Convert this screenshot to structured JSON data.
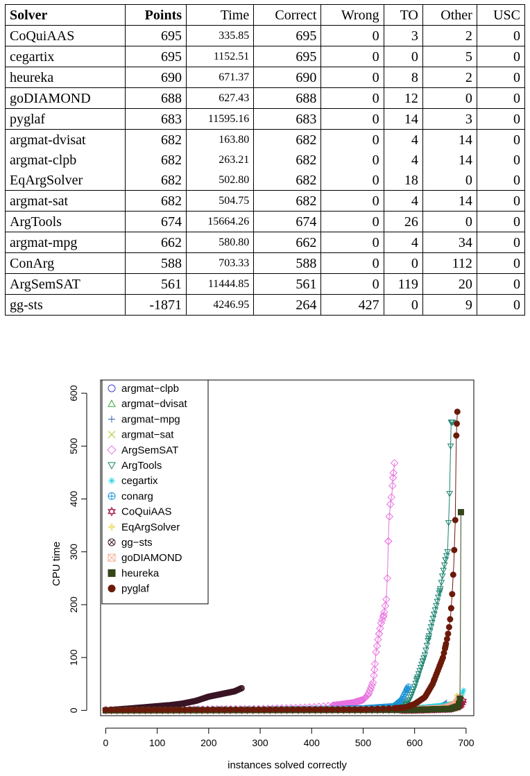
{
  "table": {
    "headers": [
      "Solver",
      "Points",
      "Time",
      "Correct",
      "Wrong",
      "TO",
      "Other",
      "USC"
    ],
    "rows": [
      [
        "CoQuiAAS",
        "695",
        "335.85",
        "695",
        "0",
        "3",
        "2",
        "0"
      ],
      [
        "cegartix",
        "695",
        "1152.51",
        "695",
        "0",
        "0",
        "5",
        "0"
      ],
      [
        "heureka",
        "690",
        "671.37",
        "690",
        "0",
        "8",
        "2",
        "0"
      ],
      [
        "goDIAMOND",
        "688",
        "627.43",
        "688",
        "0",
        "12",
        "0",
        "0"
      ],
      [
        "pyglaf",
        "683",
        "11595.16",
        "683",
        "0",
        "14",
        "3",
        "0"
      ],
      [
        "argmat-dvisat",
        "682",
        "163.80",
        "682",
        "0",
        "4",
        "14",
        "0"
      ],
      [
        "argmat-clpb",
        "682",
        "263.21",
        "682",
        "0",
        "4",
        "14",
        "0"
      ],
      [
        "EqArgSolver",
        "682",
        "502.80",
        "682",
        "0",
        "18",
        "0",
        "0"
      ],
      [
        "argmat-sat",
        "682",
        "504.75",
        "682",
        "0",
        "4",
        "14",
        "0"
      ],
      [
        "ArgTools",
        "674",
        "15664.26",
        "674",
        "0",
        "26",
        "0",
        "0"
      ],
      [
        "argmat-mpg",
        "662",
        "580.80",
        "662",
        "0",
        "4",
        "34",
        "0"
      ],
      [
        "ConArg",
        "588",
        "703.33",
        "588",
        "0",
        "0",
        "112",
        "0"
      ],
      [
        "ArgSemSAT",
        "561",
        "11444.85",
        "561",
        "0",
        "119",
        "20",
        "0"
      ],
      [
        "gg-sts",
        "-1871",
        "4246.95",
        "264",
        "427",
        "0",
        "9",
        "0"
      ]
    ]
  },
  "chart_data": {
    "type": "scatter",
    "title": "",
    "xlabel": "instances solved correctly",
    "ylabel": "CPU time",
    "xlim": [
      -10,
      715
    ],
    "ylim": [
      -10,
      625
    ],
    "xticks": [
      0,
      100,
      200,
      300,
      400,
      500,
      600,
      700
    ],
    "yticks": [
      0,
      100,
      200,
      300,
      400,
      500,
      600
    ],
    "legend_position": "top-left",
    "series": [
      {
        "name": "argmat−clpb",
        "symbol": "circle",
        "color": "#3f3fd4",
        "n": 682,
        "points": [
          [
            0,
            0
          ],
          [
            600,
            1.5
          ],
          [
            650,
            3
          ],
          [
            675,
            6
          ],
          [
            680,
            9
          ],
          [
            682,
            12
          ]
        ]
      },
      {
        "name": "argmat−dvisat",
        "symbol": "triangle-up",
        "color": "#3aa63a",
        "n": 682,
        "points": [
          [
            0,
            0
          ],
          [
            600,
            1
          ],
          [
            650,
            2
          ],
          [
            675,
            5
          ],
          [
            680,
            8
          ],
          [
            682,
            10
          ]
        ]
      },
      {
        "name": "argmat−mpg",
        "symbol": "plus",
        "color": "#2a5fb5",
        "n": 662,
        "points": [
          [
            0,
            0
          ],
          [
            550,
            2
          ],
          [
            620,
            5
          ],
          [
            650,
            8
          ],
          [
            658,
            12
          ],
          [
            662,
            15
          ]
        ]
      },
      {
        "name": "argmat−sat",
        "symbol": "x",
        "color": "#b5c233",
        "n": 682,
        "points": [
          [
            0,
            0
          ],
          [
            600,
            1.5
          ],
          [
            660,
            4
          ],
          [
            678,
            8
          ],
          [
            682,
            12
          ]
        ]
      },
      {
        "name": "ArgSemSAT",
        "symbol": "diamond",
        "color": "#e86fe0",
        "n": 561,
        "points": [
          [
            0,
            1
          ],
          [
            300,
            3
          ],
          [
            400,
            6
          ],
          [
            450,
            10
          ],
          [
            480,
            14
          ],
          [
            500,
            20
          ],
          [
            510,
            30
          ],
          [
            520,
            55
          ],
          [
            525,
            110
          ],
          [
            530,
            140
          ],
          [
            535,
            165
          ],
          [
            540,
            180
          ],
          [
            545,
            210
          ],
          [
            547,
            250
          ],
          [
            550,
            355
          ],
          [
            553,
            390
          ],
          [
            556,
            410
          ],
          [
            558,
            440
          ],
          [
            561,
            468
          ]
        ]
      },
      {
        "name": "ArgTools",
        "symbol": "triangle-down",
        "color": "#17806d",
        "n": 674,
        "points": [
          [
            0,
            0
          ],
          [
            500,
            1
          ],
          [
            560,
            3
          ],
          [
            580,
            8
          ],
          [
            590,
            20
          ],
          [
            600,
            45
          ],
          [
            610,
            75
          ],
          [
            620,
            105
          ],
          [
            630,
            150
          ],
          [
            640,
            190
          ],
          [
            650,
            230
          ],
          [
            655,
            260
          ],
          [
            660,
            285
          ],
          [
            664,
            300
          ],
          [
            668,
            410
          ],
          [
            671,
            545
          ],
          [
            674,
            545
          ]
        ]
      },
      {
        "name": "cegartix",
        "symbol": "asterisk",
        "color": "#1fd1e0",
        "n": 695,
        "points": [
          [
            0,
            0
          ],
          [
            550,
            2
          ],
          [
            620,
            6
          ],
          [
            660,
            10
          ],
          [
            685,
            15
          ],
          [
            690,
            25
          ],
          [
            695,
            38
          ]
        ]
      },
      {
        "name": "conarg",
        "symbol": "circle-plus",
        "color": "#1d92d6",
        "n": 588,
        "points": [
          [
            0,
            1
          ],
          [
            300,
            2
          ],
          [
            500,
            4
          ],
          [
            560,
            8
          ],
          [
            575,
            20
          ],
          [
            580,
            30
          ],
          [
            585,
            40
          ],
          [
            588,
            45
          ]
        ]
      },
      {
        "name": "CoQuiAAS",
        "symbol": "star-david",
        "color": "#a0103a",
        "n": 695,
        "points": [
          [
            0,
            0
          ],
          [
            600,
            1
          ],
          [
            670,
            3
          ],
          [
            690,
            8
          ],
          [
            695,
            18
          ]
        ]
      },
      {
        "name": "EqArgSolver",
        "symbol": "cross",
        "color": "#f2e48a",
        "n": 682,
        "points": [
          [
            0,
            0
          ],
          [
            600,
            2
          ],
          [
            660,
            5
          ],
          [
            675,
            10
          ],
          [
            680,
            20
          ],
          [
            682,
            28
          ]
        ]
      },
      {
        "name": "gg−sts",
        "symbol": "circle-x",
        "color": "#3a1525",
        "n": 264,
        "points": [
          [
            0,
            0
          ],
          [
            25,
            2
          ],
          [
            50,
            4
          ],
          [
            75,
            6
          ],
          [
            100,
            8
          ],
          [
            125,
            10
          ],
          [
            150,
            13
          ],
          [
            175,
            18
          ],
          [
            200,
            26
          ],
          [
            225,
            31
          ],
          [
            250,
            36
          ],
          [
            264,
            42
          ]
        ]
      },
      {
        "name": "goDIAMOND",
        "symbol": "square-x",
        "color": "#f2a98a",
        "n": 688,
        "points": [
          [
            0,
            0
          ],
          [
            600,
            2
          ],
          [
            660,
            5
          ],
          [
            680,
            12
          ],
          [
            688,
            25
          ]
        ]
      },
      {
        "name": "heureka",
        "symbol": "square",
        "color": "#36451a",
        "n": 690,
        "points": [
          [
            0,
            0
          ],
          [
            600,
            1
          ],
          [
            670,
            3
          ],
          [
            685,
            8
          ],
          [
            688,
            22
          ],
          [
            689,
            145
          ],
          [
            690,
            375
          ]
        ]
      },
      {
        "name": "pyglaf",
        "symbol": "filled-circle",
        "color": "#6b1a0a",
        "n": 683,
        "points": [
          [
            0,
            1
          ],
          [
            500,
            2
          ],
          [
            580,
            5
          ],
          [
            600,
            12
          ],
          [
            620,
            25
          ],
          [
            635,
            50
          ],
          [
            645,
            75
          ],
          [
            655,
            100
          ],
          [
            662,
            130
          ],
          [
            666,
            150
          ],
          [
            670,
            180
          ],
          [
            673,
            220
          ],
          [
            676,
            275
          ],
          [
            679,
            360
          ],
          [
            681,
            520
          ],
          [
            683,
            565
          ]
        ]
      }
    ]
  }
}
